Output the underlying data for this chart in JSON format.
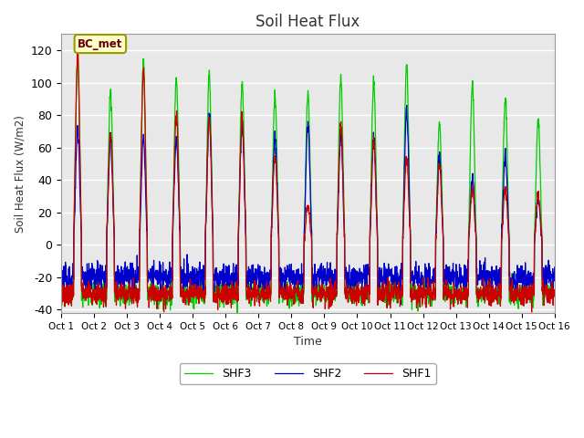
{
  "title": "Soil Heat Flux",
  "ylabel": "Soil Heat Flux (W/m2)",
  "xlabel": "Time",
  "ylim": [
    -42,
    130
  ],
  "xlim": [
    0,
    15
  ],
  "background_color": "#e8e8e8",
  "fig_background": "#ffffff",
  "grid_color": "#ffffff",
  "shf1_color": "#cc0000",
  "shf2_color": "#0000cc",
  "shf3_color": "#00cc00",
  "legend_labels": [
    "SHF1",
    "SHF2",
    "SHF3"
  ],
  "annotation_text": "BC_met",
  "xtick_labels": [
    "Oct 1",
    "Oct 2",
    "Oct 3",
    "Oct 4",
    "Oct 5",
    "Oct 6",
    "Oct 7",
    "Oct 8",
    "Oct 9",
    "Oct 10",
    "Oct 11",
    "Oct 12",
    "Oct 13",
    "Oct 14",
    "Oct 15",
    "Oct 16"
  ],
  "ytick_vals": [
    -40,
    -20,
    0,
    20,
    40,
    60,
    80,
    100,
    120
  ],
  "n_points_per_day": 144,
  "n_days": 15,
  "day_peaks_shf1": [
    118,
    70,
    108,
    80,
    78,
    78,
    55,
    25,
    75,
    65,
    55,
    50,
    35,
    35,
    30
  ],
  "day_peaks_shf2": [
    70,
    65,
    65,
    65,
    80,
    75,
    65,
    75,
    68,
    65,
    84,
    55,
    40,
    55,
    28
  ],
  "day_peaks_shf3": [
    115,
    95,
    113,
    103,
    105,
    100,
    93,
    93,
    104,
    102,
    111,
    75,
    99,
    90,
    78
  ],
  "night_base_shf1": -30,
  "night_base_shf2": -20,
  "night_base_shf3": -30,
  "seed": 7
}
